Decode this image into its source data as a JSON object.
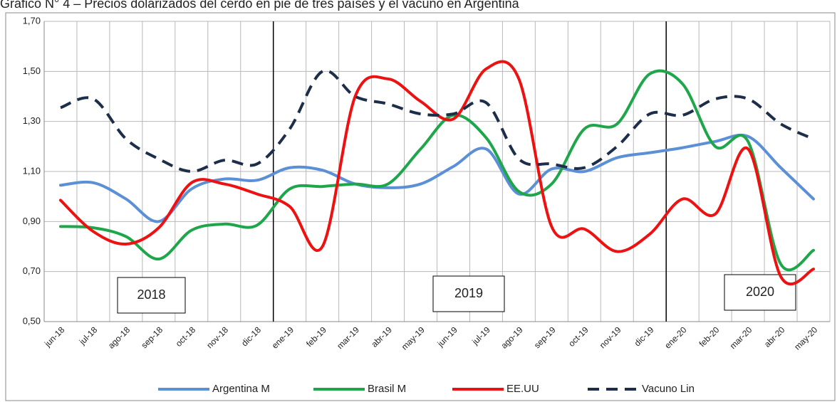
{
  "chart_data": {
    "type": "line",
    "title": "Gráfico N° 4 – Precios dolarizados del cerdo en pie de tres países y el vacuno en Argentina",
    "categories": [
      "jun-18",
      "jul-18",
      "ago-18",
      "sep-18",
      "oct-18",
      "nov-18",
      "dic-18",
      "ene-19",
      "feb-19",
      "mar-19",
      "abr-19",
      "may-19",
      "jun-19",
      "jul-19",
      "ago-19",
      "sep-19",
      "oct-19",
      "nov-19",
      "dic-19",
      "ene-20",
      "feb-20",
      "mar-20",
      "abr-20",
      "may-20"
    ],
    "series": [
      {
        "name": "Argentina M",
        "color": "#5b8fd6",
        "values": [
          1.045,
          1.055,
          0.99,
          0.9,
          1.03,
          1.07,
          1.065,
          1.115,
          1.105,
          1.05,
          1.035,
          1.05,
          1.12,
          1.19,
          1.01,
          1.11,
          1.1,
          1.155,
          1.175,
          1.195,
          1.22,
          1.24,
          1.115,
          0.99
        ]
      },
      {
        "name": "Brasil M",
        "color": "#1fa64a",
        "values": [
          0.88,
          0.875,
          0.84,
          0.75,
          0.865,
          0.89,
          0.885,
          1.03,
          1.04,
          1.05,
          1.05,
          1.19,
          1.325,
          1.235,
          1.02,
          1.05,
          1.27,
          1.29,
          1.49,
          1.45,
          1.2,
          1.22,
          0.73,
          0.785
        ]
      },
      {
        "name": "EE.UU",
        "color": "#ee1111",
        "values": [
          0.985,
          0.86,
          0.81,
          0.875,
          1.055,
          1.05,
          1.01,
          0.96,
          0.8,
          1.4,
          1.47,
          1.38,
          1.31,
          1.51,
          1.47,
          0.88,
          0.87,
          0.78,
          0.85,
          0.99,
          0.93,
          1.19,
          0.68,
          0.71
        ]
      },
      {
        "name": "Vacuno Lin",
        "color": "#1c2e4a",
        "dashed": true,
        "values": [
          1.355,
          1.39,
          1.23,
          1.15,
          1.1,
          1.145,
          1.13,
          1.27,
          1.5,
          1.4,
          1.37,
          1.33,
          1.33,
          1.375,
          1.15,
          1.13,
          1.115,
          1.2,
          1.33,
          1.325,
          1.39,
          1.39,
          1.29,
          1.23
        ]
      }
    ],
    "ylim": [
      0.5,
      1.7
    ],
    "yticks": [
      {
        "value": 0.5,
        "label": "0,50"
      },
      {
        "value": 0.7,
        "label": "0,70"
      },
      {
        "value": 0.9,
        "label": "0,90"
      },
      {
        "value": 1.1,
        "label": "1,10"
      },
      {
        "value": 1.3,
        "label": "1,30"
      },
      {
        "value": 1.5,
        "label": "1,50"
      },
      {
        "value": 1.7,
        "label": "1,70"
      }
    ],
    "grid": true,
    "legend": "bottom",
    "annotations": [
      "2018",
      "2019",
      "2020"
    ]
  }
}
